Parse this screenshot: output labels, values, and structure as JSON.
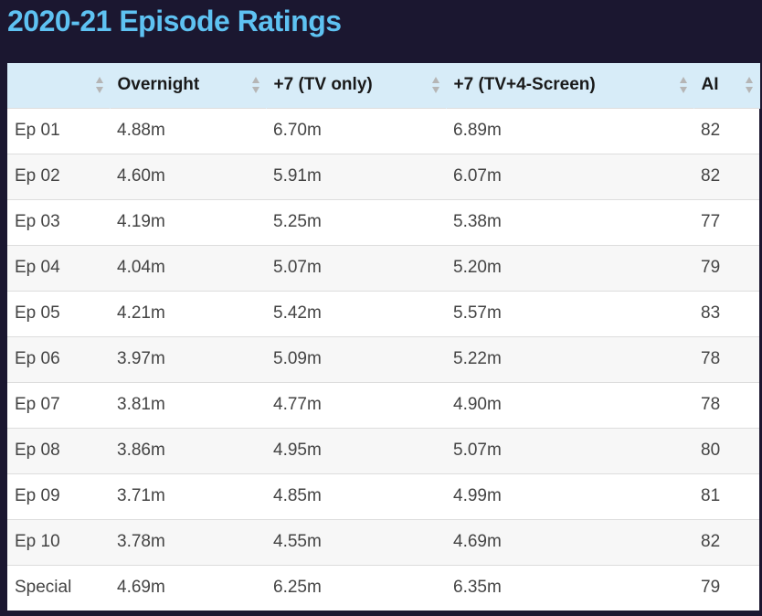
{
  "page": {
    "title": "2020-21 Episode Ratings"
  },
  "table": {
    "headers": [
      "",
      "Overnight",
      "+7 (TV only)",
      "+7 (TV+4-Screen)",
      "AI"
    ],
    "rows": [
      [
        "Ep 01",
        "4.88m",
        "6.70m",
        "6.89m",
        "82"
      ],
      [
        "Ep 02",
        "4.60m",
        "5.91m",
        "6.07m",
        "82"
      ],
      [
        "Ep 03",
        "4.19m",
        "5.25m",
        "5.38m",
        "77"
      ],
      [
        "Ep 04",
        "4.04m",
        "5.07m",
        "5.20m",
        "79"
      ],
      [
        "Ep 05",
        "4.21m",
        "5.42m",
        "5.57m",
        "83"
      ],
      [
        "Ep 06",
        "3.97m",
        "5.09m",
        "5.22m",
        "78"
      ],
      [
        "Ep 07",
        "3.81m",
        "4.77m",
        "4.90m",
        "78"
      ],
      [
        "Ep 08",
        "3.86m",
        "4.95m",
        "5.07m",
        "80"
      ],
      [
        "Ep 09",
        "3.71m",
        "4.85m",
        "4.99m",
        "81"
      ],
      [
        "Ep 10",
        "3.78m",
        "4.55m",
        "4.69m",
        "82"
      ],
      [
        "Special",
        "4.69m",
        "6.25m",
        "6.35m",
        "79"
      ]
    ]
  },
  "icons": {
    "sort": "sort-icon"
  },
  "colors": {
    "background": "#1b1730",
    "title": "#5ec2f2",
    "header_bg": "#d7ecf8",
    "row_alt": "#f7f7f7",
    "sort_arrow": "#b5b5b5"
  }
}
